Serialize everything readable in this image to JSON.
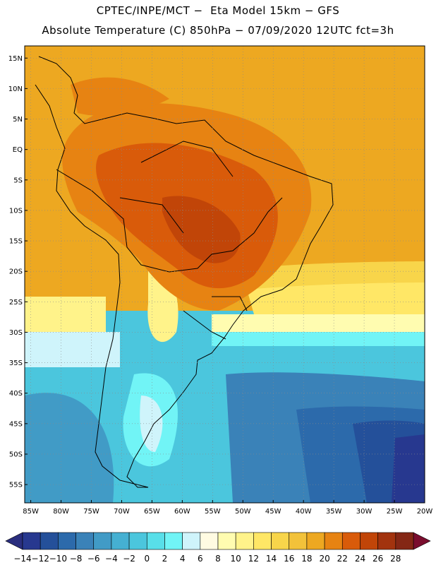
{
  "header": {
    "line1": "CPTEC/INPE/MCT −  Eta Model 15km − GFS",
    "line2": "Absolute Temperature (C) 850hPa − 07/09/2020 12UTC fct=3h"
  },
  "map": {
    "lon_range": [
      -86,
      -20
    ],
    "lat_range": [
      -58,
      17
    ],
    "lon_ticks": [
      "85W",
      "80W",
      "75W",
      "70W",
      "65W",
      "60W",
      "55W",
      "50W",
      "45W",
      "40W",
      "35W",
      "30W",
      "25W",
      "20W"
    ],
    "lat_ticks": [
      "15N",
      "10N",
      "5N",
      "EQ",
      "5S",
      "10S",
      "15S",
      "20S",
      "25S",
      "30S",
      "35S",
      "40S",
      "45S",
      "50S",
      "55S"
    ],
    "gridlines": true
  },
  "colorbar": {
    "labels": [
      "-14",
      "-12",
      "-10",
      "-8",
      "-6",
      "-4",
      "-2",
      "0",
      "2",
      "4",
      "6",
      "8",
      "10",
      "12",
      "14",
      "16",
      "18",
      "20",
      "22",
      "24",
      "26",
      "28"
    ],
    "colors": [
      "#27388f",
      "#24509a",
      "#2c6aab",
      "#3a82b8",
      "#419bc6",
      "#45b0d2",
      "#4bc6dd",
      "#58dfe9",
      "#71f4f6",
      "#cff4fb",
      "#fffbe2",
      "#fffcb0",
      "#fff38a",
      "#ffe766",
      "#f8d54a",
      "#f2c23a",
      "#eda821",
      "#e78312",
      "#d95b0a",
      "#c14508",
      "#a2330e",
      "#842715"
    ],
    "under_color": "#2a2e7e",
    "over_color": "#7a0d2e"
  }
}
